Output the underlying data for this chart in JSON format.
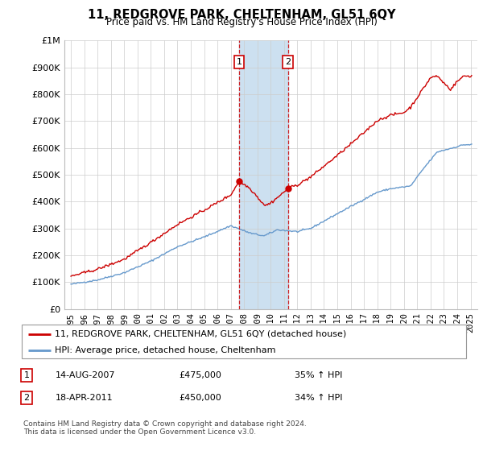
{
  "title": "11, REDGROVE PARK, CHELTENHAM, GL51 6QY",
  "subtitle": "Price paid vs. HM Land Registry's House Price Index (HPI)",
  "legend_line1": "11, REDGROVE PARK, CHELTENHAM, GL51 6QY (detached house)",
  "legend_line2": "HPI: Average price, detached house, Cheltenham",
  "footnote": "Contains HM Land Registry data © Crown copyright and database right 2024.\nThis data is licensed under the Open Government Licence v3.0.",
  "purchase1_date": "14-AUG-2007",
  "purchase1_price": 475000,
  "purchase1_label": "35% ↑ HPI",
  "purchase2_date": "18-APR-2011",
  "purchase2_price": 450000,
  "purchase2_label": "34% ↑ HPI",
  "purchase1_x": 2007.617,
  "purchase2_x": 2011.292,
  "red_color": "#cc0000",
  "blue_color": "#6699cc",
  "shade_color": "#cce0f0",
  "grid_color": "#cccccc",
  "background_color": "#ffffff",
  "ylim": [
    0,
    1000000
  ],
  "xlim_start": 1994.5,
  "xlim_end": 2025.5,
  "yticks": [
    0,
    100000,
    200000,
    300000,
    400000,
    500000,
    600000,
    700000,
    800000,
    900000,
    1000000
  ],
  "ytick_labels": [
    "£0",
    "£100K",
    "£200K",
    "£300K",
    "£400K",
    "£500K",
    "£600K",
    "£700K",
    "£800K",
    "£900K",
    "£1M"
  ],
  "xticks": [
    1995,
    1996,
    1997,
    1998,
    1999,
    2000,
    2001,
    2002,
    2003,
    2004,
    2005,
    2006,
    2007,
    2008,
    2009,
    2010,
    2011,
    2012,
    2013,
    2014,
    2015,
    2016,
    2017,
    2018,
    2019,
    2020,
    2021,
    2022,
    2023,
    2024,
    2025
  ]
}
